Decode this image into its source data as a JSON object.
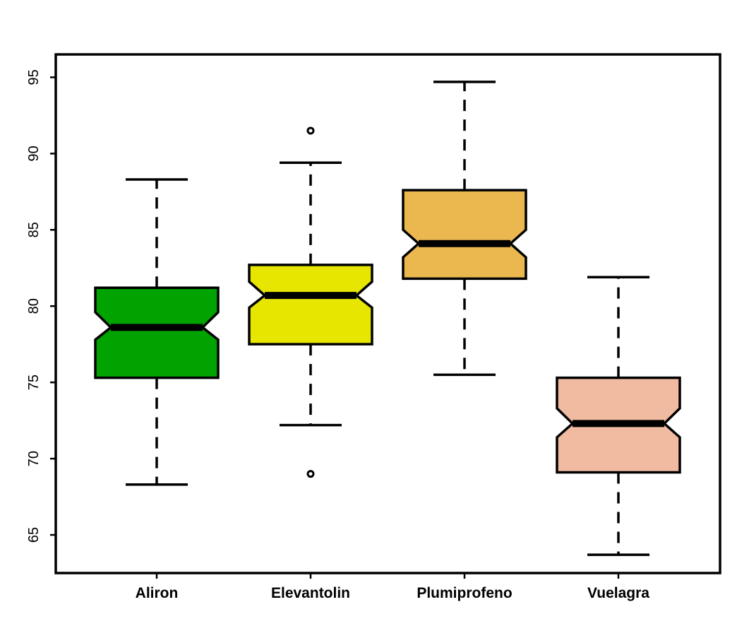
{
  "chart_data": {
    "type": "boxplot",
    "notched": true,
    "categories": [
      "Aliron",
      "Elevantolin",
      "Plumiprofeno",
      "Vuelagra"
    ],
    "colors": [
      "#00a300",
      "#e6e600",
      "#ebb850",
      "#f0bba0"
    ],
    "boxes": [
      {
        "name": "Aliron",
        "whisker_low": 68.3,
        "q1": 75.3,
        "median": 78.6,
        "q3": 81.2,
        "whisker_high": 88.3,
        "notch_low": 77.8,
        "notch_high": 79.6,
        "outliers": []
      },
      {
        "name": "Elevantolin",
        "whisker_low": 72.2,
        "q1": 77.5,
        "median": 80.7,
        "q3": 82.7,
        "whisker_high": 89.4,
        "notch_low": 79.9,
        "notch_high": 81.6,
        "outliers": [
          91.5,
          69.0
        ]
      },
      {
        "name": "Plumiprofeno",
        "whisker_low": 75.5,
        "q1": 81.8,
        "median": 84.1,
        "q3": 87.6,
        "whisker_high": 94.7,
        "notch_low": 83.2,
        "notch_high": 85.0,
        "outliers": []
      },
      {
        "name": "Vuelagra",
        "whisker_low": 63.7,
        "q1": 69.1,
        "median": 72.3,
        "q3": 75.3,
        "whisker_high": 81.9,
        "notch_low": 71.4,
        "notch_high": 73.3,
        "outliers": []
      }
    ],
    "yticks": [
      "65",
      "70",
      "75",
      "80",
      "85",
      "90",
      "95"
    ],
    "ylim": [
      62.5,
      96.5
    ],
    "title": "",
    "xlabel": "",
    "ylabel": "",
    "grid": false,
    "legend": "none"
  }
}
